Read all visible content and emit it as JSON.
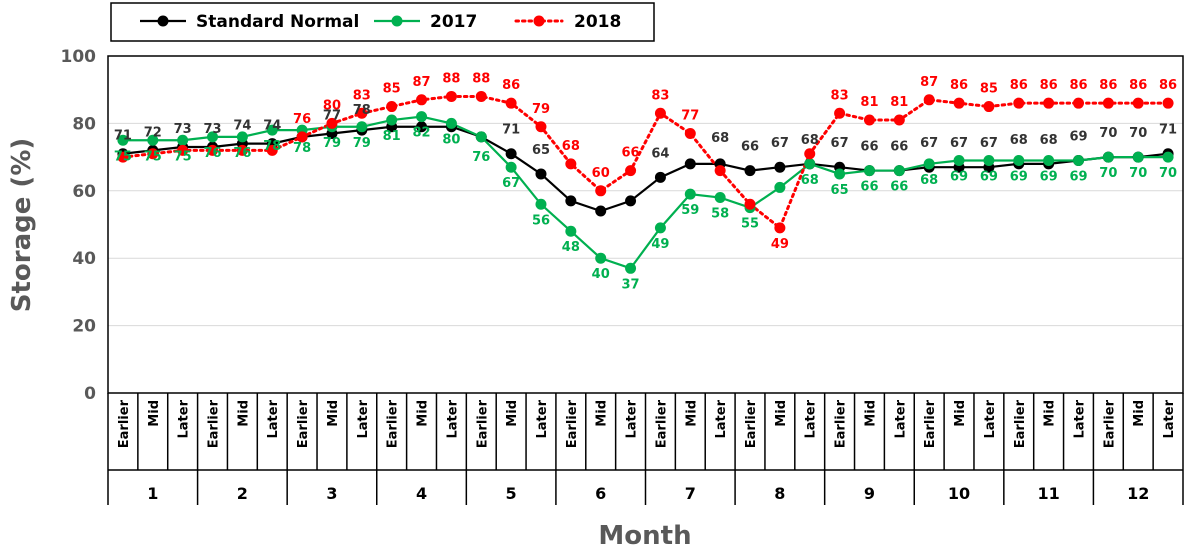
{
  "chart_data": {
    "type": "line",
    "xlabel": "Month",
    "ylabel": "Storage (%)",
    "ylim": [
      0,
      100
    ],
    "yticks": [
      "0",
      "20",
      "40",
      "60",
      "80",
      "100"
    ],
    "grid": true,
    "legend_position": "top-left",
    "months": [
      "1",
      "2",
      "3",
      "4",
      "5",
      "6",
      "7",
      "8",
      "9",
      "10",
      "11",
      "12"
    ],
    "periods": [
      "Earlier",
      "Mid",
      "Later"
    ],
    "series": [
      {
        "name": "Standard Normal",
        "color": "#000000",
        "style": "solid",
        "values": [
          71,
          72,
          73,
          73,
          74,
          74,
          76,
          77,
          78,
          79,
          79,
          79,
          76,
          71,
          65,
          57,
          54,
          57,
          64,
          68,
          68,
          66,
          67,
          68,
          67,
          66,
          66,
          67,
          67,
          67,
          68,
          68,
          69,
          70,
          70,
          71
        ]
      },
      {
        "name": "2017",
        "color": "#00b050",
        "style": "solid",
        "values": [
          75,
          75,
          75,
          76,
          76,
          78,
          78,
          79,
          79,
          81,
          82,
          80,
          76,
          67,
          56,
          48,
          40,
          37,
          49,
          59,
          58,
          55,
          61,
          68,
          65,
          66,
          66,
          68,
          69,
          69,
          69,
          69,
          69,
          70,
          70,
          70
        ]
      },
      {
        "name": "2018",
        "color": "#ff0000",
        "style": "dotted",
        "values": [
          70,
          71,
          72,
          72,
          72,
          72,
          76,
          80,
          83,
          85,
          87,
          88,
          88,
          86,
          79,
          68,
          60,
          66,
          83,
          77,
          66,
          56,
          49,
          71,
          83,
          81,
          81,
          87,
          86,
          85,
          86,
          86,
          86,
          86,
          86,
          86
        ]
      }
    ],
    "data_labels": {
      "Standard Normal": [
        71,
        72,
        73,
        73,
        74,
        74,
        null,
        77,
        78,
        null,
        null,
        null,
        null,
        71,
        65,
        null,
        null,
        null,
        64,
        null,
        68,
        66,
        67,
        68,
        67,
        66,
        66,
        67,
        67,
        67,
        68,
        68,
        69,
        70,
        70,
        71
      ],
      "2017": [
        75,
        75,
        75,
        76,
        76,
        78,
        78,
        79,
        79,
        81,
        82,
        80,
        76,
        67,
        56,
        48,
        40,
        37,
        49,
        59,
        58,
        55,
        null,
        68,
        65,
        66,
        66,
        68,
        69,
        69,
        69,
        69,
        69,
        70,
        70,
        70
      ],
      "2018": [
        null,
        null,
        null,
        null,
        null,
        null,
        76,
        80,
        83,
        85,
        87,
        88,
        88,
        86,
        79,
        68,
        60,
        66,
        83,
        77,
        null,
        null,
        49,
        null,
        83,
        81,
        81,
        87,
        86,
        85,
        86,
        86,
        86,
        86,
        86,
        86
      ]
    }
  }
}
